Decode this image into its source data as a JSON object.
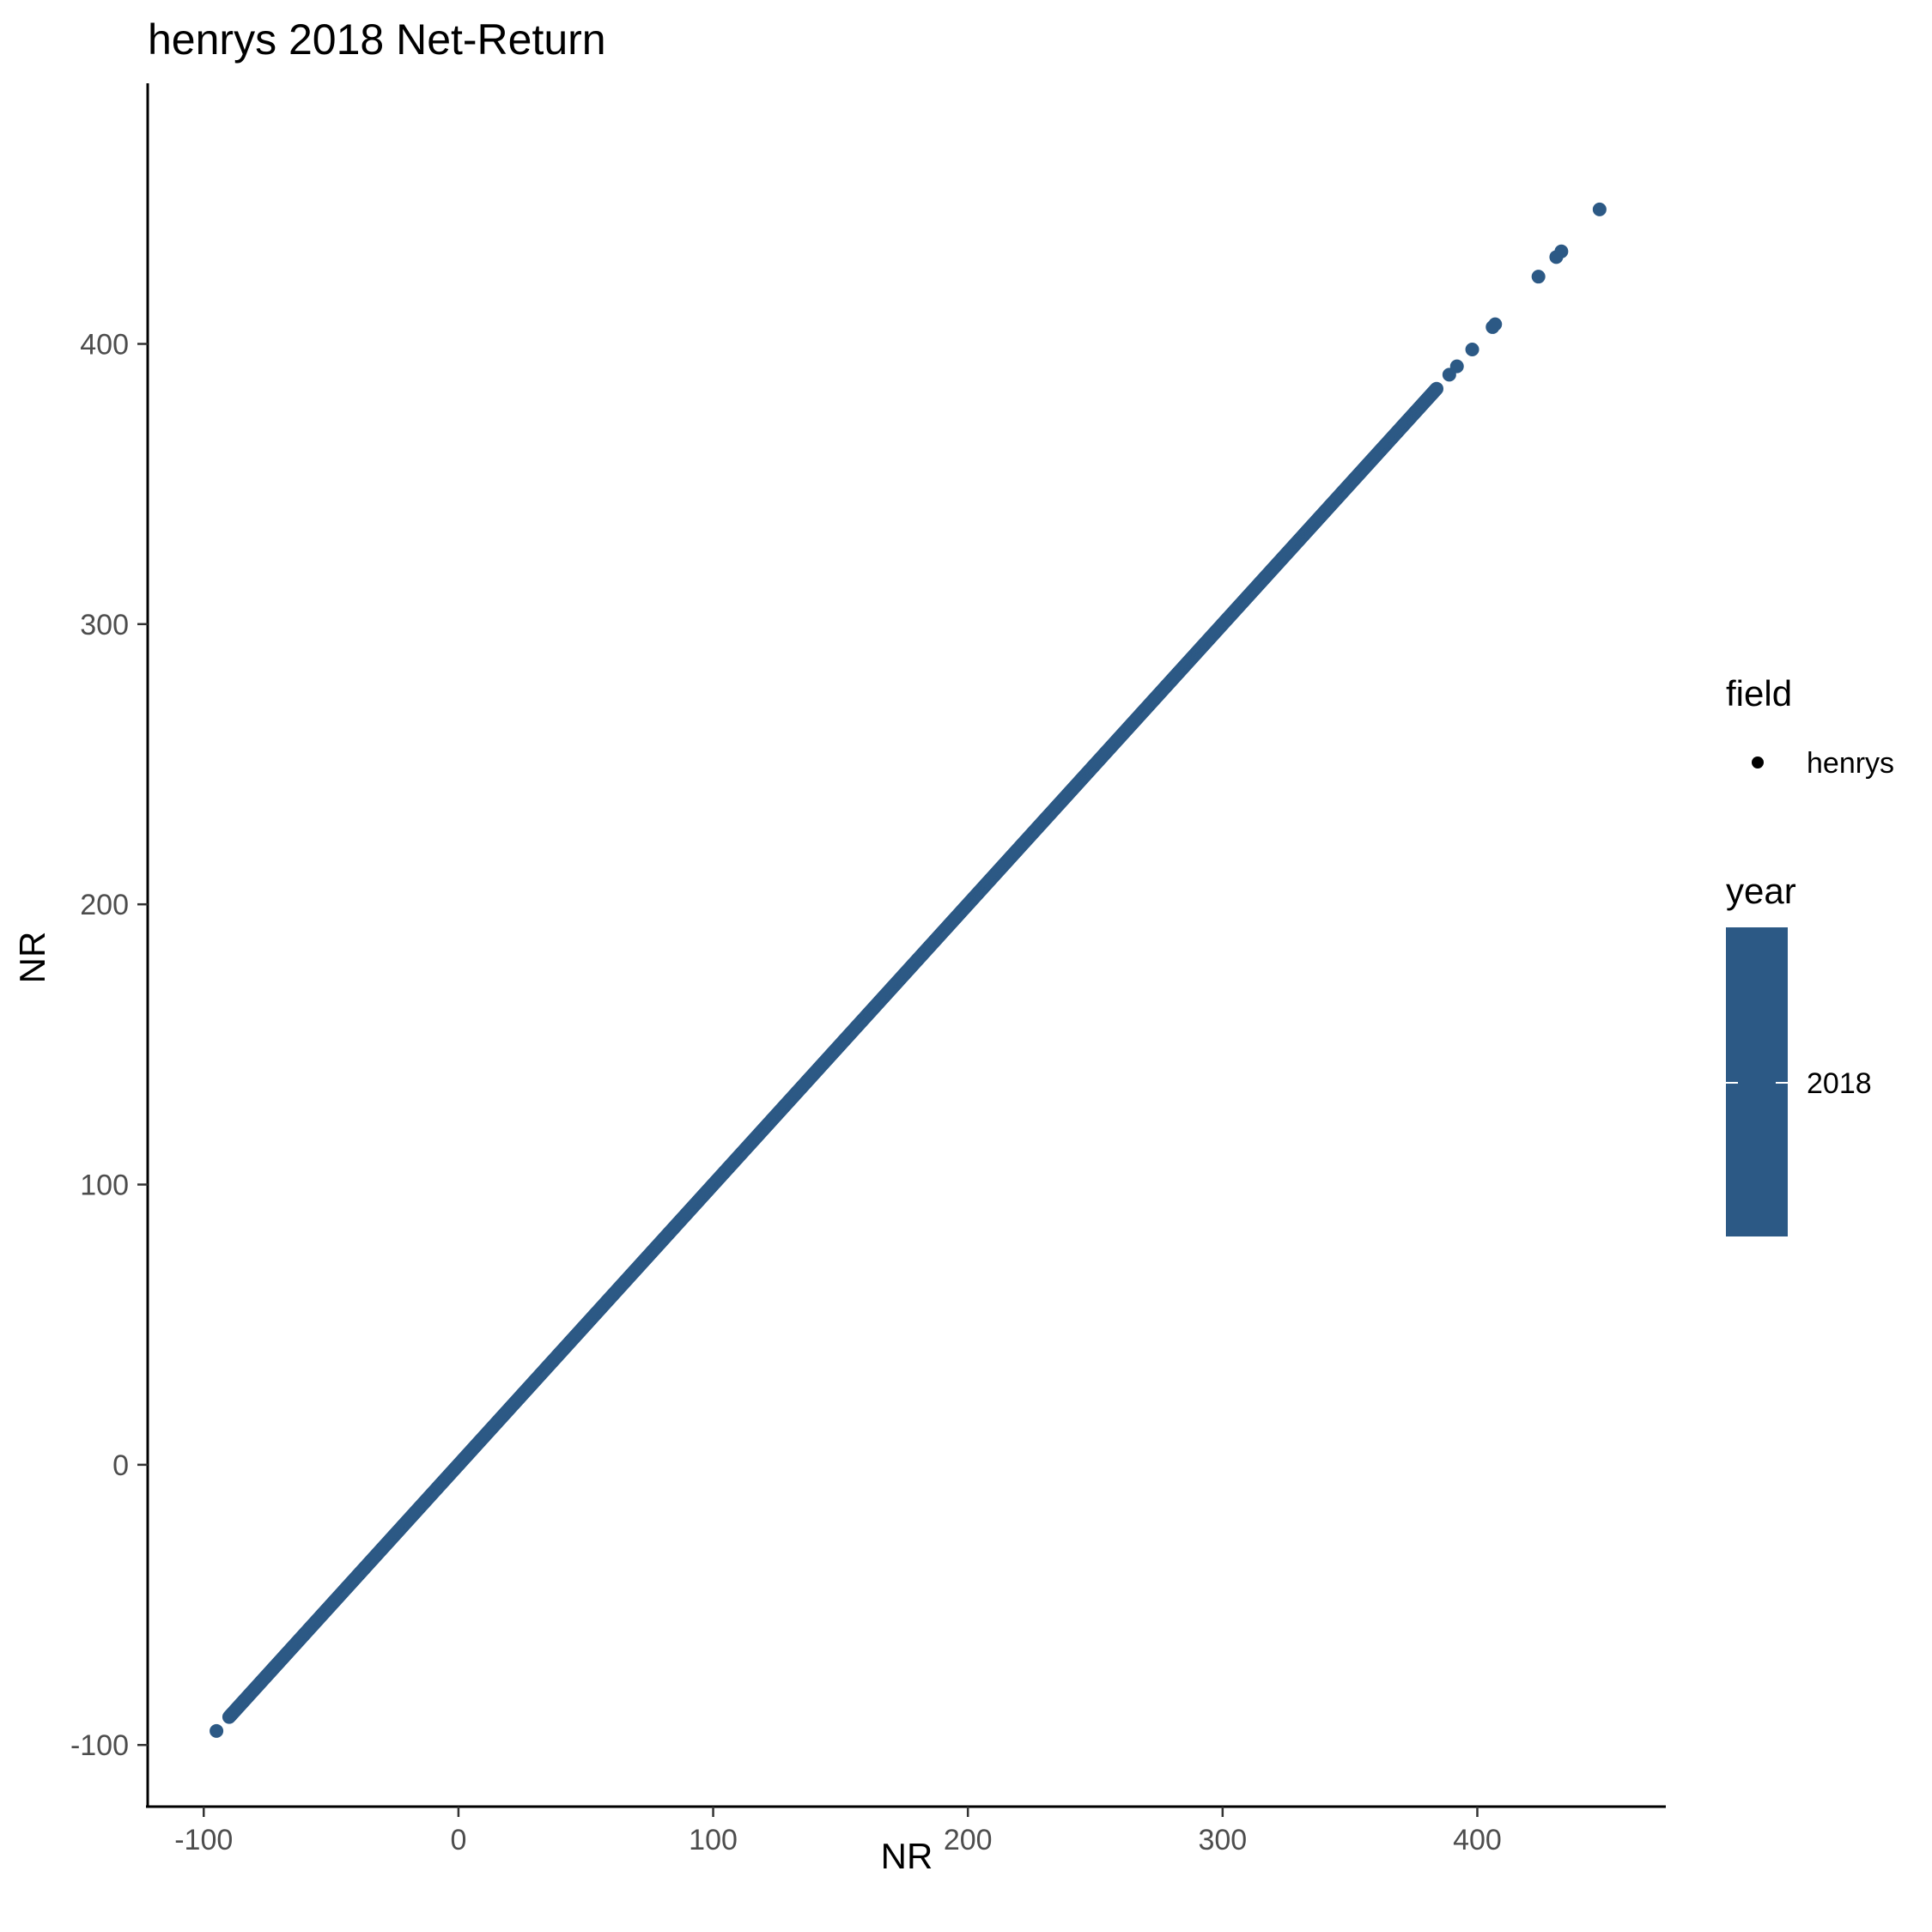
{
  "chart_data": {
    "type": "scatter",
    "title": "henrys 2018 Net-Return",
    "xlabel": "NR",
    "ylabel": "NR",
    "xlim": [
      -122,
      474
    ],
    "ylim": [
      -122,
      493
    ],
    "x_ticks": [
      -100,
      0,
      100,
      200,
      300,
      400
    ],
    "y_ticks": [
      -100,
      0,
      100,
      200,
      300,
      400
    ],
    "x_tick_labels": [
      "-100",
      "0",
      "100",
      "200",
      "300",
      "400"
    ],
    "y_tick_labels": [
      "-100",
      "0",
      "100",
      "200",
      "300",
      "400"
    ],
    "grid": false,
    "point_color": "#2c5985",
    "series": [
      {
        "name": "henrys",
        "dense_line": {
          "from": -90,
          "to": 384,
          "step": 0.25
        },
        "outliers": [
          {
            "x": -95,
            "y": -95
          },
          {
            "x": 389,
            "y": 389
          },
          {
            "x": 392,
            "y": 392
          },
          {
            "x": 398,
            "y": 398
          },
          {
            "x": 406,
            "y": 406
          },
          {
            "x": 407,
            "y": 407
          },
          {
            "x": 424,
            "y": 424
          },
          {
            "x": 431,
            "y": 431
          },
          {
            "x": 433,
            "y": 433
          },
          {
            "x": 448,
            "y": 448
          }
        ]
      }
    ],
    "legend": {
      "placement": "right",
      "field": {
        "title": "field",
        "items": [
          "henrys"
        ],
        "marker_color": "#000000"
      },
      "year": {
        "title": "year",
        "items": [
          "2018"
        ],
        "color": "#2c5985"
      }
    }
  }
}
